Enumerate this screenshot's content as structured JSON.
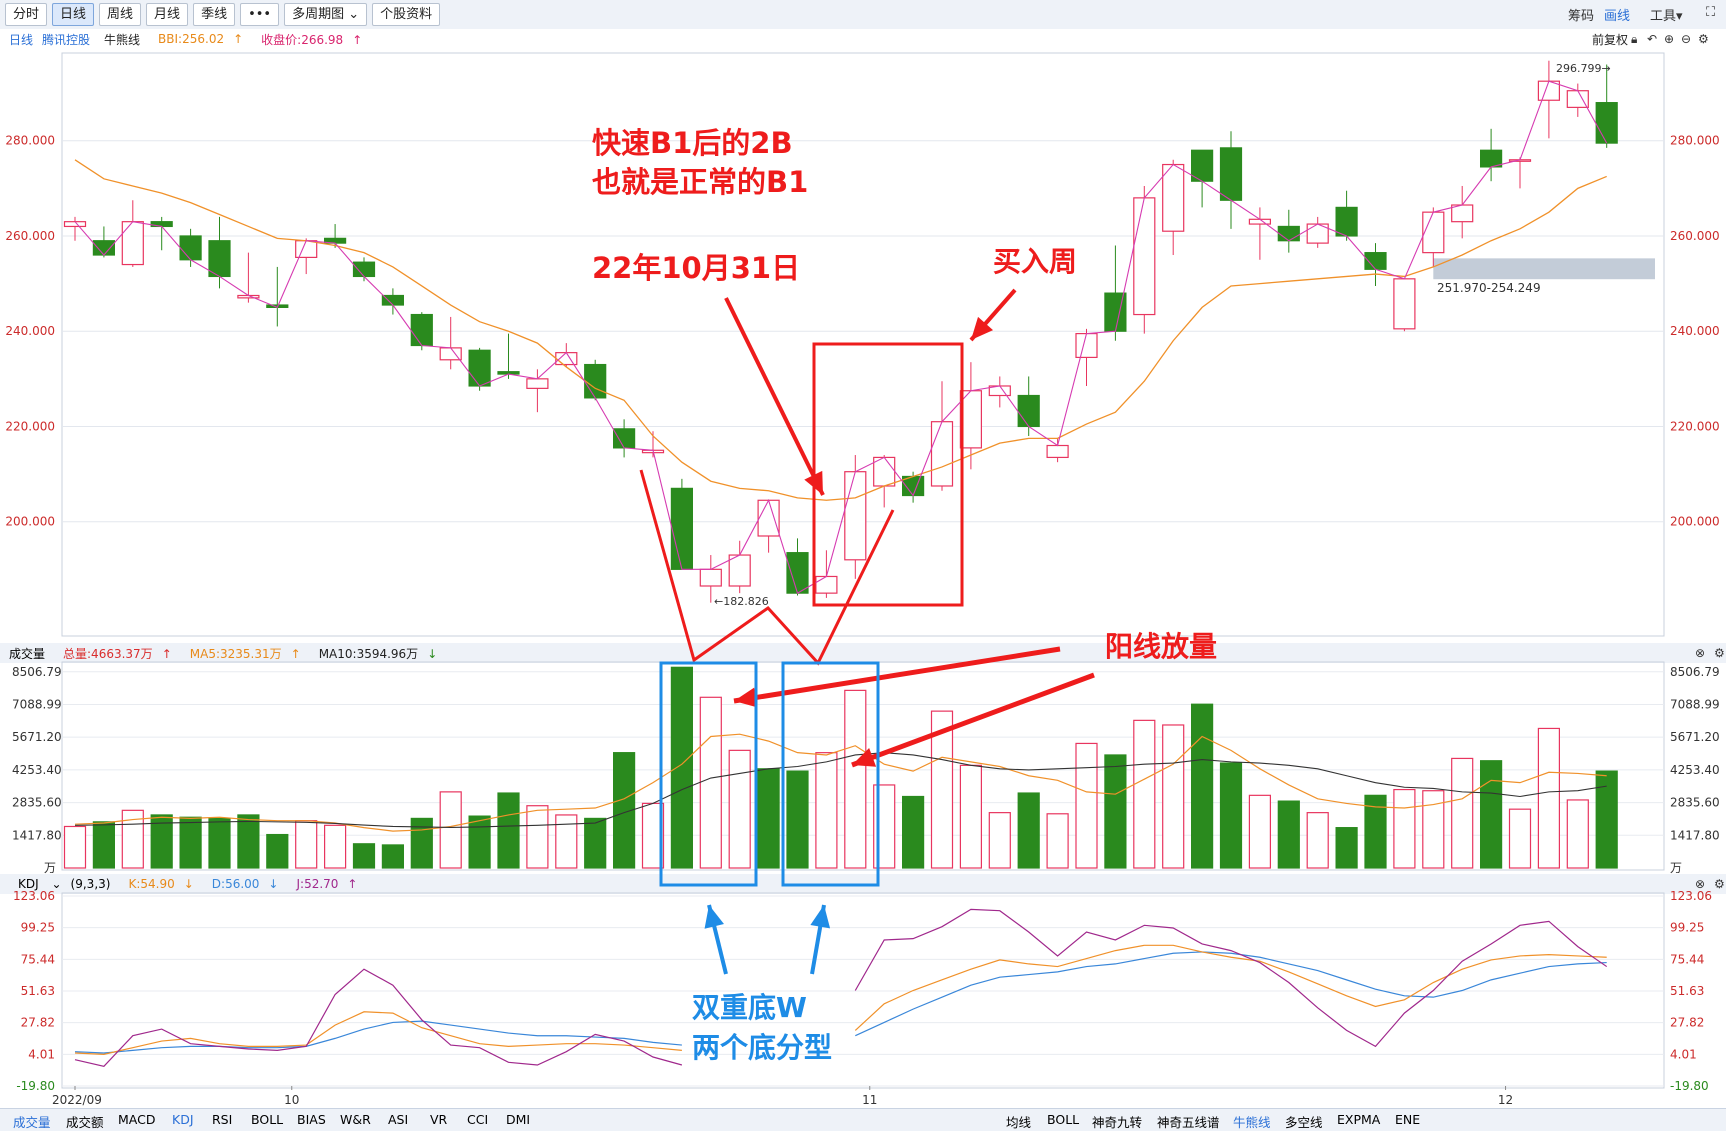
{
  "toolbar": {
    "tabs": [
      "分时",
      "日线",
      "周线",
      "月线",
      "季线",
      "•••",
      "多周期图",
      "个股资料"
    ],
    "active_tab": "日线",
    "right": {
      "chip": "筹码",
      "draw": "画线",
      "tools": "工具"
    }
  },
  "infobar": {
    "period": "日线",
    "stock": "腾讯控股",
    "indicator": "牛熊线",
    "bbi": "BBI:256.02",
    "close": "收盘价:266.98",
    "fq": "前复权"
  },
  "vol_head": {
    "name": "成交量",
    "total": "总量:4663.37万",
    "ma5": "MA5:3235.31万",
    "ma10": "MA10:3594.96万"
  },
  "kdj_head": {
    "name": "KDJ",
    "params": "(9,3,3)",
    "k": "K:54.90",
    "d": "D:56.00",
    "j": "J:52.70"
  },
  "bottom": {
    "left": [
      "成交量",
      "成交额",
      "MACD",
      "KDJ",
      "RSI",
      "BOLL",
      "BIAS",
      "W&R",
      "ASI",
      "VR",
      "CCI",
      "DMI"
    ],
    "right": [
      "均线",
      "BOLL",
      "神奇九转",
      "神奇五线谱",
      "牛熊线",
      "多空线",
      "EXPMA",
      "ENE"
    ]
  },
  "annotations": {
    "a1_line1": "快速B1后的2B",
    "a1_line2": "也就是正常的B1",
    "a2": "22年10月31日",
    "a3": "买入周",
    "a4": "阳线放量",
    "a5_line1": "双重底W",
    "a5_line2": "两个底分型",
    "high_label": "296.799",
    "low_label": "182.826",
    "zone_label": "251.970-254.249"
  },
  "colors": {
    "up": "#e8355f",
    "down": "#2a8a1e",
    "ma_orange": "#f0912a",
    "ma_dark": "#333333",
    "k_blue": "#3a87d9",
    "red_ann": "#ee1c1c",
    "blue_ann": "#1e8ce6"
  },
  "chart_data": [
    {
      "type": "candlestick",
      "title": "腾讯控股 日线",
      "ylim": [
        176,
        298
      ],
      "y_ticks": [
        200,
        220,
        240,
        260,
        280
      ],
      "x_labels": [
        "2022/09",
        "10",
        "11",
        "12"
      ],
      "x_label_index": [
        0,
        7.5,
        27.5,
        49.5
      ],
      "candles": [
        {
          "o": 262.0,
          "h": 264.0,
          "l": 259.0,
          "c": 263.0
        },
        {
          "o": 259.0,
          "h": 262.0,
          "l": 255.5,
          "c": 256.0
        },
        {
          "o": 254.0,
          "h": 267.5,
          "l": 253.5,
          "c": 263.0
        },
        {
          "o": 263.0,
          "h": 264.0,
          "l": 257.0,
          "c": 262.0
        },
        {
          "o": 260.0,
          "h": 261.5,
          "l": 253.5,
          "c": 255.0
        },
        {
          "o": 259.0,
          "h": 264.0,
          "l": 249.0,
          "c": 251.5
        },
        {
          "o": 247.0,
          "h": 256.5,
          "l": 246.0,
          "c": 247.5
        },
        {
          "o": 245.5,
          "h": 253.5,
          "l": 241.0,
          "c": 245.0
        },
        {
          "o": 255.5,
          "h": 259.5,
          "l": 252.0,
          "c": 259.0
        },
        {
          "o": 259.5,
          "h": 262.5,
          "l": 257.5,
          "c": 258.5
        },
        {
          "o": 254.5,
          "h": 255.5,
          "l": 250.5,
          "c": 251.5
        },
        {
          "o": 247.5,
          "h": 249.0,
          "l": 243.5,
          "c": 245.5
        },
        {
          "o": 243.5,
          "h": 244.0,
          "l": 236.0,
          "c": 237.0
        },
        {
          "o": 234.0,
          "h": 243.0,
          "l": 232.0,
          "c": 236.5
        },
        {
          "o": 236.0,
          "h": 236.5,
          "l": 227.5,
          "c": 228.5
        },
        {
          "o": 231.5,
          "h": 239.5,
          "l": 230.0,
          "c": 231.0
        },
        {
          "o": 228.0,
          "h": 232.0,
          "l": 223.0,
          "c": 230.0
        },
        {
          "o": 233.0,
          "h": 237.5,
          "l": 232.5,
          "c": 235.5
        },
        {
          "o": 233.0,
          "h": 234.0,
          "l": 225.5,
          "c": 226.0
        },
        {
          "o": 219.5,
          "h": 221.5,
          "l": 213.5,
          "c": 215.5
        },
        {
          "o": 214.5,
          "h": 219.0,
          "l": 213.5,
          "c": 215.0
        },
        {
          "o": 207.0,
          "h": 209.0,
          "l": 190.5,
          "c": 190.0
        },
        {
          "o": 186.5,
          "h": 193.0,
          "l": 183.0,
          "c": 190.0
        },
        {
          "o": 186.5,
          "h": 196.0,
          "l": 185.0,
          "c": 193.0
        },
        {
          "o": 197.0,
          "h": 204.5,
          "l": 193.5,
          "c": 204.5
        },
        {
          "o": 193.5,
          "h": 196.5,
          "l": 184.5,
          "c": 185.0
        },
        {
          "o": 185.0,
          "h": 194.0,
          "l": 184.0,
          "c": 188.5
        },
        {
          "o": 192.0,
          "h": 214.0,
          "l": 188.0,
          "c": 210.5
        },
        {
          "o": 207.5,
          "h": 214.0,
          "l": 203.0,
          "c": 213.5
        },
        {
          "o": 209.5,
          "h": 210.5,
          "l": 204.0,
          "c": 205.5
        },
        {
          "o": 207.5,
          "h": 229.5,
          "l": 206.5,
          "c": 221.0
        },
        {
          "o": 215.5,
          "h": 233.5,
          "l": 211.0,
          "c": 227.5
        },
        {
          "o": 226.5,
          "h": 230.5,
          "l": 224.0,
          "c": 228.5
        },
        {
          "o": 226.5,
          "h": 230.5,
          "l": 218.0,
          "c": 220.0
        },
        {
          "o": 213.5,
          "h": 217.5,
          "l": 212.5,
          "c": 216.0
        },
        {
          "o": 234.5,
          "h": 240.5,
          "l": 228.5,
          "c": 239.5
        },
        {
          "o": 248.0,
          "h": 258.0,
          "l": 238.0,
          "c": 240.0
        },
        {
          "o": 243.5,
          "h": 270.5,
          "l": 239.5,
          "c": 268.0
        },
        {
          "o": 261.0,
          "h": 276.0,
          "l": 256.0,
          "c": 275.0
        },
        {
          "o": 278.0,
          "h": 278.0,
          "l": 266.0,
          "c": 271.5
        },
        {
          "o": 278.5,
          "h": 282.0,
          "l": 261.5,
          "c": 267.5
        },
        {
          "o": 262.5,
          "h": 266.0,
          "l": 255.0,
          "c": 263.5
        },
        {
          "o": 262.0,
          "h": 265.5,
          "l": 256.5,
          "c": 259.0
        },
        {
          "o": 258.5,
          "h": 264.0,
          "l": 257.5,
          "c": 262.5
        },
        {
          "o": 266.0,
          "h": 269.5,
          "l": 259.0,
          "c": 260.0
        },
        {
          "o": 256.5,
          "h": 258.5,
          "l": 249.5,
          "c": 253.0
        },
        {
          "o": 240.5,
          "h": 251.0,
          "l": 240.0,
          "c": 251.0
        },
        {
          "o": 256.5,
          "h": 266.0,
          "l": 253.5,
          "c": 265.0
        },
        {
          "o": 263.0,
          "h": 270.5,
          "l": 259.5,
          "c": 266.5
        },
        {
          "o": 278.0,
          "h": 282.5,
          "l": 271.5,
          "c": 274.5
        },
        {
          "o": 276.0,
          "h": 276.5,
          "l": 270.0,
          "c": 276.0
        },
        {
          "o": 288.5,
          "h": 296.8,
          "l": 280.5,
          "c": 292.5
        },
        {
          "o": 287.0,
          "h": 292.0,
          "l": 285.0,
          "c": 290.5
        },
        {
          "o": 288.0,
          "h": 296.0,
          "l": 278.5,
          "c": 279.5
        }
      ],
      "ma_orange": [
        276.0,
        272.0,
        270.5,
        269.0,
        267.0,
        264.5,
        262.0,
        259.5,
        259.0,
        258.0,
        256.5,
        253.5,
        249.5,
        245.5,
        242.0,
        240.0,
        237.5,
        232.5,
        228.0,
        225.5,
        218.0,
        212.5,
        208.5,
        207.0,
        206.5,
        205.0,
        204.5,
        205.0,
        207.5,
        209.5,
        211.5,
        214.0,
        216.5,
        217.5,
        217.5,
        220.5,
        223.0,
        229.5,
        238.0,
        245.0,
        249.5,
        250.0,
        250.5,
        251.0,
        251.5,
        252.0,
        251.5,
        253.5,
        256.0,
        259.0,
        261.5,
        265.0,
        270.0,
        272.5
      ],
      "close_line_label": "收盘价",
      "zone": {
        "from": 251.97,
        "to": 254.249,
        "start_index": 47
      }
    },
    {
      "type": "bar",
      "title": "成交量",
      "unit": "万",
      "ylim": [
        0,
        8800
      ],
      "y_ticks": [
        1417.8,
        2835.6,
        4253.4,
        5671.2,
        7088.99,
        8506.79
      ],
      "values": [
        1800,
        2000,
        2500,
        2300,
        2200,
        2150,
        2300,
        1450,
        2050,
        1850,
        1050,
        1000,
        2150,
        3300,
        2250,
        3250,
        2700,
        2300,
        2150,
        5000,
        2800,
        8700,
        7400,
        5100,
        4300,
        4200,
        5000,
        7700,
        3600,
        3100,
        6800,
        4450,
        2400,
        3250,
        2350,
        5400,
        4900,
        6400,
        6200,
        7100,
        4550,
        3150,
        2900,
        2400,
        1750,
        3150,
        3400,
        3350,
        4750,
        4650,
        2550,
        6050,
        2950,
        4200
      ],
      "up": [
        true,
        false,
        true,
        false,
        false,
        false,
        false,
        false,
        true,
        true,
        false,
        false,
        false,
        true,
        false,
        false,
        true,
        true,
        false,
        false,
        true,
        false,
        true,
        true,
        false,
        false,
        true,
        true,
        true,
        false,
        true,
        true,
        true,
        false,
        true,
        true,
        false,
        true,
        true,
        false,
        false,
        true,
        false,
        true,
        false,
        false,
        true,
        true,
        true,
        false,
        true,
        true,
        true,
        false
      ],
      "ma5": [
        1900,
        1950,
        2100,
        2200,
        2150,
        2200,
        2100,
        2050,
        2050,
        1950,
        1750,
        1600,
        1650,
        1800,
        2050,
        2300,
        2500,
        2550,
        2600,
        3000,
        3700,
        4500,
        5700,
        5800,
        5500,
        5000,
        4900,
        5300,
        4500,
        4200,
        4800,
        4600,
        4400,
        4000,
        3800,
        3300,
        3200,
        3850,
        4500,
        5700,
        5100,
        4300,
        3600,
        3000,
        2800,
        2650,
        2600,
        2750,
        3000,
        3800,
        3700,
        4150,
        4100,
        4000
      ],
      "ma10": [
        1850,
        1870,
        1900,
        1950,
        1970,
        2000,
        2020,
        2000,
        1980,
        1930,
        1860,
        1800,
        1780,
        1760,
        1780,
        1820,
        1850,
        1900,
        1950,
        2400,
        2800,
        3400,
        3900,
        4100,
        4300,
        4400,
        4600,
        4900,
        5000,
        4900,
        4700,
        4450,
        4300,
        4250,
        4300,
        4350,
        4400,
        4500,
        4550,
        4700,
        4600,
        4550,
        4450,
        4300,
        4000,
        3700,
        3500,
        3450,
        3300,
        3250,
        3100,
        3300,
        3350,
        3550
      ]
    },
    {
      "type": "line",
      "title": "KDJ",
      "ylim": [
        -19.8,
        123.06
      ],
      "y_ticks": [
        -19.8,
        4.01,
        27.82,
        51.63,
        75.44,
        99.25,
        123.06
      ],
      "series": [
        {
          "name": "K",
          "values": [
            6,
            5,
            7,
            9,
            10,
            10,
            9,
            9,
            10,
            16,
            23,
            28,
            29,
            26,
            23,
            20,
            18,
            18,
            17,
            16,
            13,
            11,
            null,
            null,
            null,
            null,
            null,
            18,
            28,
            38,
            47,
            56,
            62,
            64,
            66,
            70,
            72,
            76,
            80,
            81,
            80,
            77,
            72,
            67,
            60,
            53,
            48,
            47,
            52,
            60,
            65,
            70,
            72,
            73
          ]
        },
        {
          "name": "D",
          "values": [
            5,
            4,
            9,
            14,
            16,
            12,
            10,
            10,
            11,
            26,
            36,
            35,
            24,
            18,
            12,
            10,
            11,
            12,
            12,
            11,
            9,
            7,
            null,
            null,
            null,
            null,
            null,
            22,
            42,
            52,
            60,
            68,
            75,
            72,
            70,
            76,
            82,
            86,
            86,
            81,
            77,
            74,
            66,
            57,
            48,
            40,
            45,
            58,
            68,
            75,
            78,
            79,
            78,
            77
          ]
        },
        {
          "name": "J",
          "values": [
            0,
            -5,
            18,
            23,
            12,
            10,
            8,
            7,
            10,
            49,
            68,
            56,
            30,
            11,
            9,
            -2,
            -4,
            6,
            19,
            14,
            2,
            -4,
            null,
            null,
            null,
            null,
            null,
            52,
            90,
            91,
            100,
            113,
            112,
            96,
            78,
            96,
            90,
            101,
            99,
            87,
            82,
            73,
            58,
            39,
            22,
            10,
            35,
            52,
            74,
            87,
            101,
            104,
            85,
            70
          ]
        }
      ]
    }
  ]
}
